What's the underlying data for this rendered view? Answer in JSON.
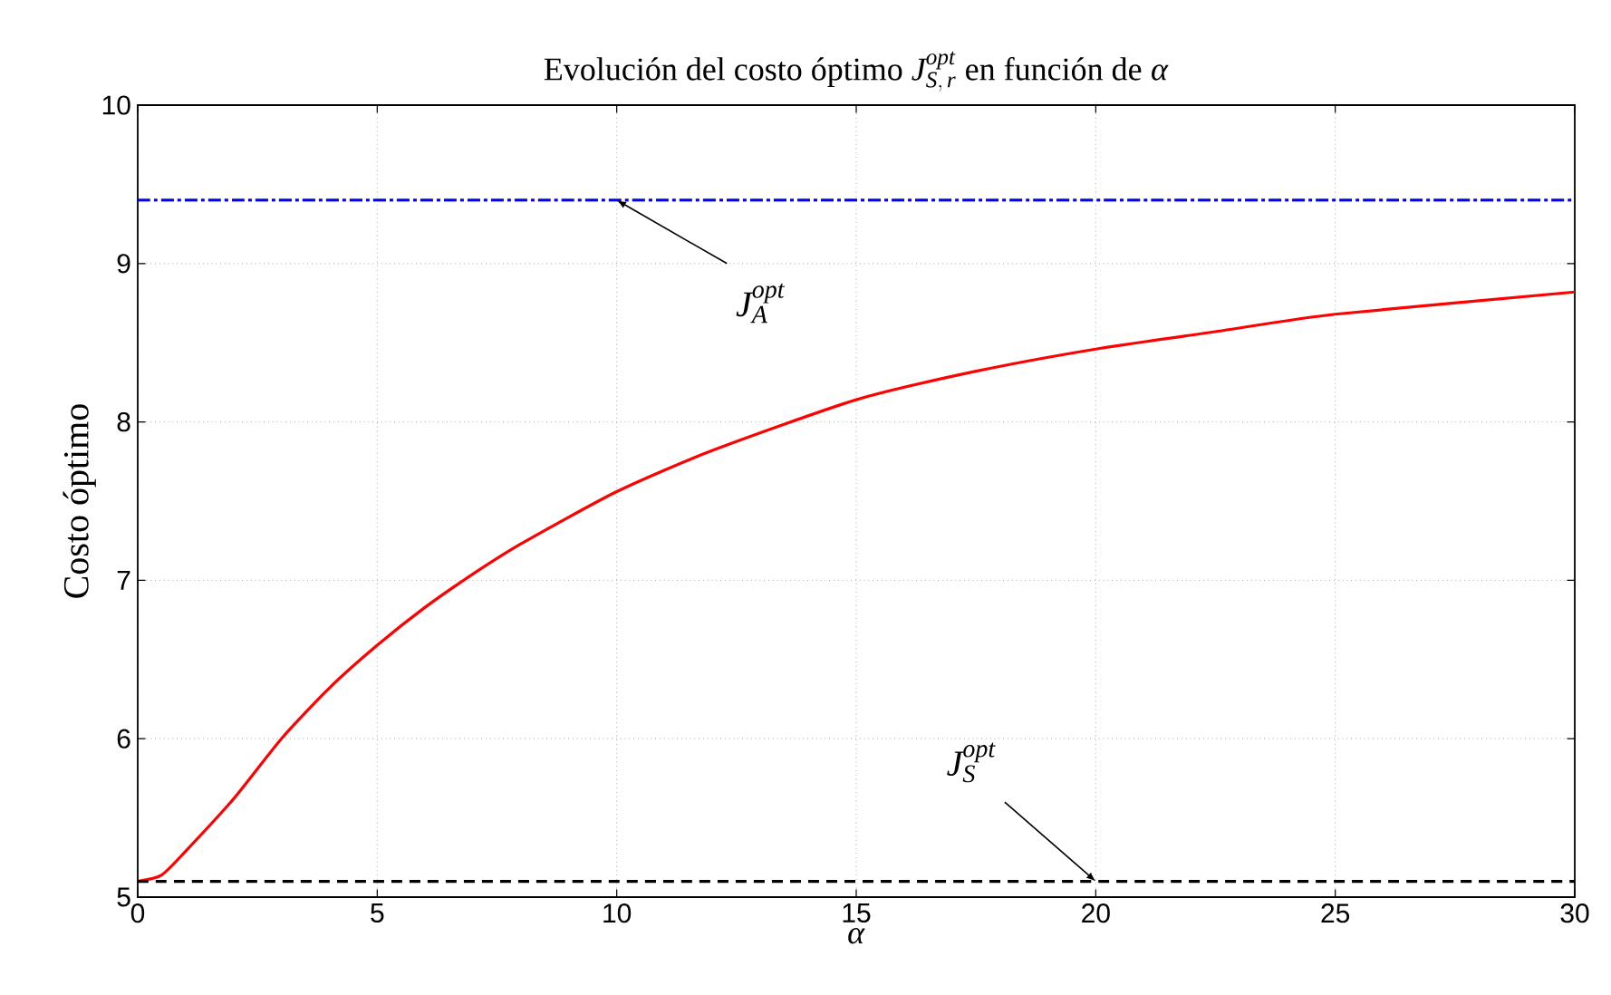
{
  "chart_data": {
    "type": "line",
    "title": "\\mbox{Evolución del costo óptimo }J_{S,\\,r}^{opt}\\mbox{ en función de }\\alpha",
    "xlabel": "\\alpha",
    "ylabel": "Costo óptimo",
    "series": [
      {
        "color": "#ff0000",
        "line_style": "solid",
        "x": [
          0,
          0.5,
          1,
          2,
          3,
          4,
          5,
          6,
          7,
          8,
          10,
          12,
          15,
          17.5,
          20,
          22.5,
          25,
          30
        ],
        "values": [
          5.1,
          5.14,
          5.29,
          5.62,
          6.0,
          6.32,
          6.59,
          6.83,
          7.04,
          7.23,
          7.56,
          7.82,
          8.14,
          8.32,
          8.46,
          8.57,
          8.68,
          8.82
        ]
      },
      {
        "color": "#0000ff",
        "line_style": "dashdot",
        "x": [
          0,
          30
        ],
        "values": [
          9.4,
          9.4
        ]
      },
      {
        "color": "#000000",
        "line_style": "dashed",
        "x": [
          0,
          30
        ],
        "values": [
          5.1,
          5.1
        ]
      }
    ],
    "annotations": [
      {
        "text": "J_{A}^{opt}",
        "x": 10,
        "y": 9.4
      },
      {
        "text": "J_{S}^{opt}",
        "x": 20,
        "y": 5.1
      }
    ],
    "xlim": [
      0,
      30
    ],
    "ylim": [
      5,
      10
    ],
    "xticks": [
      0,
      5,
      10,
      15,
      20,
      25,
      30
    ],
    "yticks": [
      5,
      6,
      7,
      8,
      9,
      10
    ],
    "grid": true,
    "marker": "none"
  }
}
